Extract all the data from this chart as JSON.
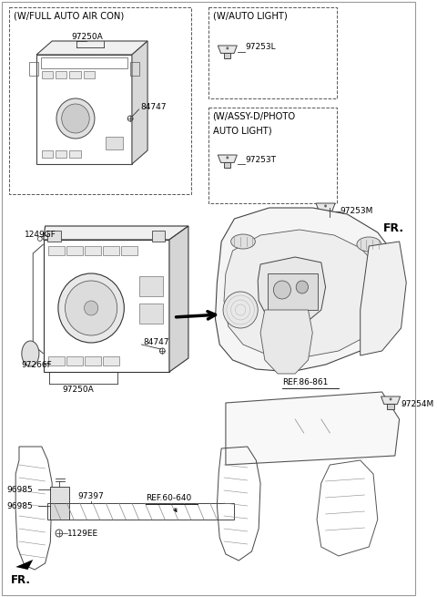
{
  "bg_color": "#ffffff",
  "border_color": "#888888",
  "labels": {
    "box1_title": "(W/FULL AUTO AIR CON)",
    "box2_title": "(W/AUTO LIGHT)",
    "box3_title": "(W/ASSY-D/PHOTO\nAUTO LIGHT)",
    "97250A_top": "97250A",
    "84747_top": "84747",
    "97253L": "97253L",
    "97253T": "97253T",
    "97253M": "97253M",
    "1249GF": "1249GF",
    "97266F": "97266F",
    "84747_mid": "84747",
    "97250A_mid": "97250A",
    "REF86": "REF.86-861",
    "97254M": "97254M",
    "REF60": "REF.60-640",
    "97397": "97397",
    "96985a": "96985",
    "96985b": "96985",
    "1129EE": "1129EE",
    "FR": "FR."
  }
}
